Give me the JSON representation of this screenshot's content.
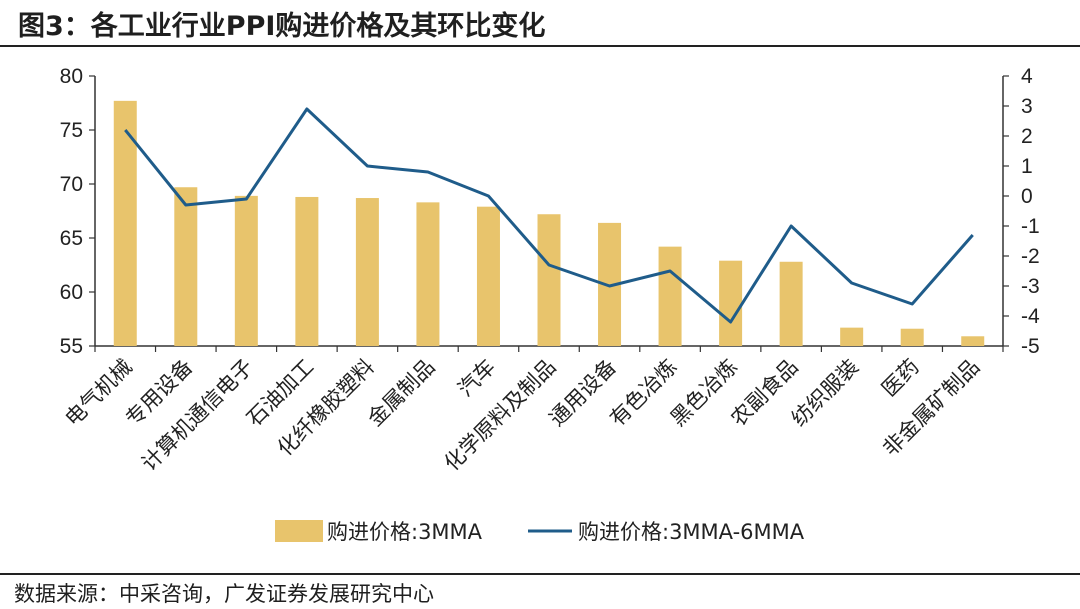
{
  "title": "图3：各工业行业PPI购进价格及其环比变化",
  "source": "数据来源：中采咨询，广发证券发展研究中心",
  "colors": {
    "bar": "#E8C46C",
    "line": "#1F5C8A",
    "axis": "#333333"
  },
  "chart_data": {
    "type": "bar+line",
    "categories": [
      "电气机械",
      "专用设备",
      "计算机通信电子",
      "石油加工",
      "化纤橡胶塑料",
      "金属制品",
      "汽车",
      "化学原料及制品",
      "通用设备",
      "有色冶炼",
      "黑色冶炼",
      "农副食品",
      "纺织服装",
      "医药",
      "非金属矿制品"
    ],
    "series": [
      {
        "name": "购进价格:3MMA",
        "type": "bar",
        "axis": "left",
        "values": [
          77.7,
          69.7,
          68.9,
          68.8,
          68.7,
          68.3,
          67.9,
          67.2,
          66.4,
          64.2,
          62.9,
          62.8,
          56.7,
          56.6,
          55.9
        ]
      },
      {
        "name": "购进价格:3MMA-6MMA",
        "type": "line",
        "axis": "right",
        "values": [
          2.2,
          -0.3,
          -0.1,
          2.9,
          1.0,
          0.8,
          0.0,
          -2.3,
          -3.0,
          -2.5,
          -4.2,
          -1.0,
          -2.9,
          -3.6,
          -1.3
        ]
      }
    ],
    "y_left": {
      "min": 55,
      "max": 80,
      "ticks": [
        "80",
        "75",
        "70",
        "65",
        "60",
        "55"
      ]
    },
    "y_right": {
      "min": -5,
      "max": 4,
      "ticks": [
        "4",
        "3",
        "2",
        "1",
        "0",
        "-1",
        "-2",
        "-3",
        "-4",
        "-5"
      ]
    },
    "legend": [
      "购进价格:3MMA",
      "购进价格:3MMA-6MMA"
    ],
    "legend_position": "bottom"
  }
}
